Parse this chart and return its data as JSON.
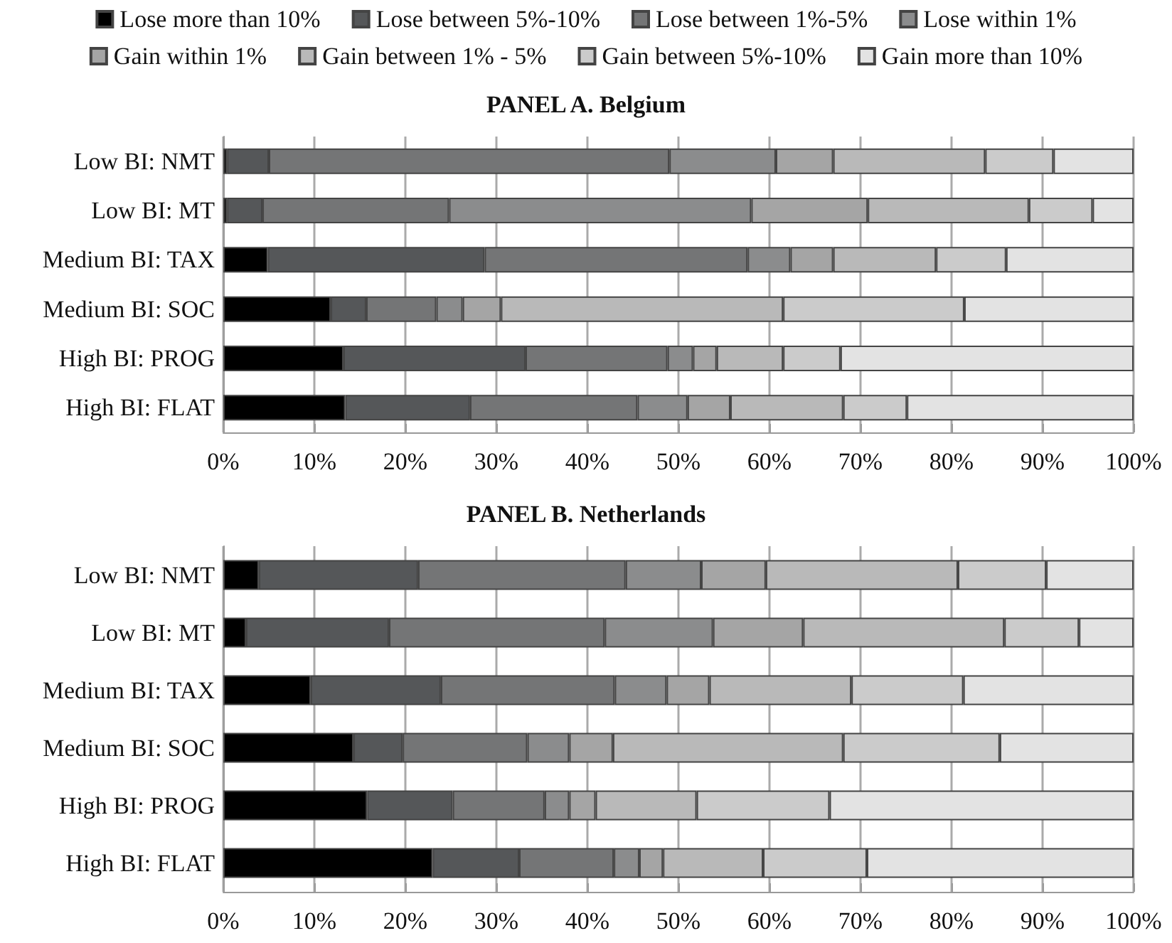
{
  "chart_data": [
    {
      "type": "bar",
      "orientation": "horizontal",
      "stacked": true,
      "title": "PANEL A. Belgium",
      "legend": "top",
      "grid": "x",
      "categories": [
        "Low BI: NMT",
        "Low BI: MT",
        "Medium BI: TAX",
        "Medium BI: SOC",
        "High BI: PROG",
        "High BI: FLAT"
      ],
      "xlim": [
        0,
        100
      ],
      "xticks": [
        {
          "value": 0,
          "label": "0%"
        },
        {
          "value": 10,
          "label": "10%"
        },
        {
          "value": 20,
          "label": "20%"
        },
        {
          "value": 30,
          "label": "30%"
        },
        {
          "value": 40,
          "label": "40%"
        },
        {
          "value": 50,
          "label": "50%"
        },
        {
          "value": 60,
          "label": "60%"
        },
        {
          "value": 70,
          "label": "70%"
        },
        {
          "value": 80,
          "label": "80%"
        },
        {
          "value": 90,
          "label": "90%"
        },
        {
          "value": 100,
          "label": "100%"
        }
      ],
      "series": [
        {
          "name": "Lose more than 10%",
          "color": "#000000",
          "values": [
            0.4,
            0.4,
            4.9,
            11.8,
            13.2,
            13.4
          ]
        },
        {
          "name": "Lose between 5%-10%",
          "color": "#555759",
          "values": [
            4.6,
            3.9,
            23.8,
            3.9,
            20.0,
            13.7
          ]
        },
        {
          "name": "Lose between 1%-5%",
          "color": "#747576",
          "values": [
            44.0,
            20.5,
            28.9,
            7.7,
            15.6,
            18.4
          ]
        },
        {
          "name": "Lose within 1%",
          "color": "#8b8c8d",
          "values": [
            11.7,
            33.2,
            4.7,
            2.9,
            2.8,
            5.5
          ]
        },
        {
          "name": "Gain within 1%",
          "color": "#a5a5a5",
          "values": [
            6.3,
            12.8,
            4.7,
            4.2,
            2.6,
            4.7
          ]
        },
        {
          "name": "Gain between 1% - 5%",
          "color": "#b9b9b9",
          "values": [
            16.7,
            17.7,
            11.3,
            31.0,
            7.3,
            12.4
          ]
        },
        {
          "name": "Gain between 5%-10%",
          "color": "#cbcbcb",
          "values": [
            7.5,
            7.0,
            7.7,
            19.9,
            6.3,
            7.0
          ]
        },
        {
          "name": "Gain more than 10%",
          "color": "#e3e3e3",
          "values": [
            8.8,
            4.5,
            14.0,
            18.6,
            32.2,
            24.9
          ]
        }
      ]
    },
    {
      "type": "bar",
      "orientation": "horizontal",
      "stacked": true,
      "title": "PANEL B. Netherlands",
      "grid": "x",
      "categories": [
        "Low BI: NMT",
        "Low BI: MT",
        "Medium BI: TAX",
        "Medium BI: SOC",
        "High BI: PROG",
        "High BI: FLAT"
      ],
      "xlim": [
        0,
        100
      ],
      "xticks": [
        {
          "value": 0,
          "label": "0%"
        },
        {
          "value": 10,
          "label": "10%"
        },
        {
          "value": 20,
          "label": "20%"
        },
        {
          "value": 30,
          "label": "30%"
        },
        {
          "value": 40,
          "label": "40%"
        },
        {
          "value": 50,
          "label": "50%"
        },
        {
          "value": 60,
          "label": "60%"
        },
        {
          "value": 70,
          "label": "70%"
        },
        {
          "value": 80,
          "label": "80%"
        },
        {
          "value": 90,
          "label": "90%"
        },
        {
          "value": 100,
          "label": "100%"
        }
      ],
      "series": [
        {
          "color": "#000000",
          "values": [
            3.9,
            2.5,
            9.6,
            14.3,
            15.8,
            23.0
          ]
        },
        {
          "color": "#555759",
          "values": [
            17.5,
            15.7,
            14.3,
            5.4,
            9.4,
            9.5
          ]
        },
        {
          "color": "#747576",
          "values": [
            22.8,
            23.7,
            19.1,
            13.7,
            10.1,
            10.4
          ]
        },
        {
          "color": "#8b8c8d",
          "values": [
            8.3,
            11.9,
            5.7,
            4.6,
            2.7,
            2.8
          ]
        },
        {
          "color": "#a5a5a5",
          "values": [
            7.1,
            9.9,
            4.7,
            4.8,
            2.9,
            2.6
          ]
        },
        {
          "color": "#b9b9b9",
          "values": [
            21.1,
            22.1,
            15.6,
            25.3,
            11.1,
            11.0
          ]
        },
        {
          "color": "#cbcbcb",
          "values": [
            9.7,
            8.2,
            12.3,
            17.2,
            14.6,
            11.4
          ]
        },
        {
          "color": "#e3e3e3",
          "values": [
            9.6,
            6.0,
            18.7,
            14.7,
            33.4,
            29.3
          ]
        }
      ]
    }
  ]
}
